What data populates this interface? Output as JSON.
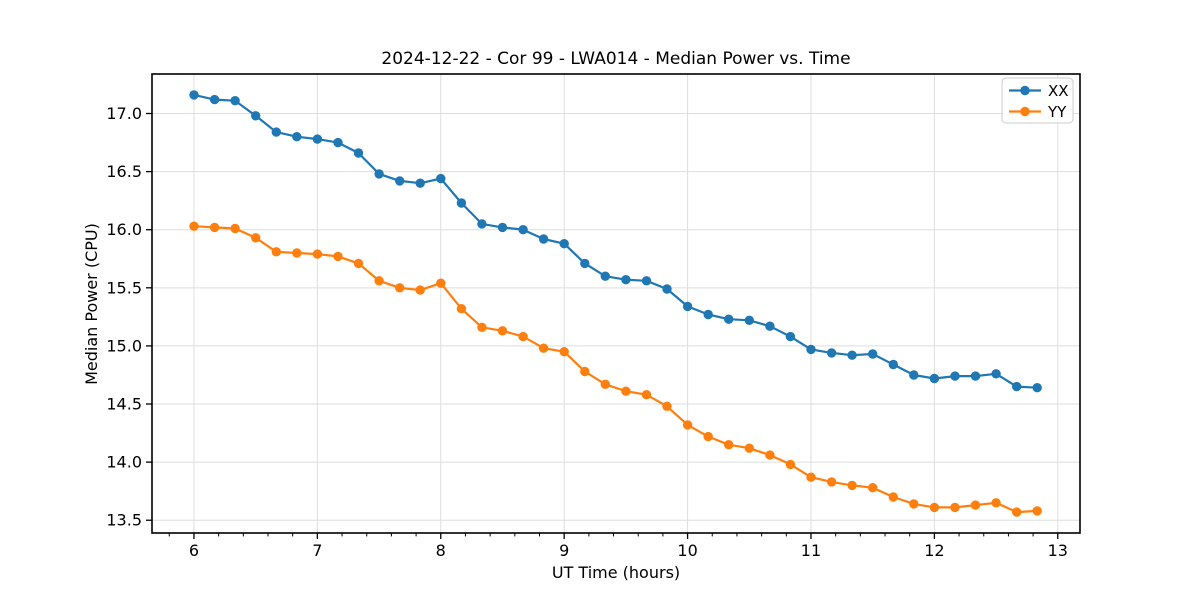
{
  "chart_data": {
    "type": "line",
    "title": "2024-12-22 - Cor 99 - LWA014 - Median Power vs. Time",
    "xlabel": "UT Time (hours)",
    "ylabel": "Median Power (CPU)",
    "xlim": [
      5.66,
      13.18
    ],
    "ylim": [
      13.39,
      17.34
    ],
    "x_major_ticks": [
      6,
      7,
      8,
      9,
      10,
      11,
      12,
      13
    ],
    "x_tick_labels": [
      "6",
      "7",
      "8",
      "9",
      "10",
      "11",
      "12",
      "13"
    ],
    "y_major_ticks": [
      13.5,
      14.0,
      14.5,
      15.0,
      15.5,
      16.0,
      16.5,
      17.0
    ],
    "y_tick_labels": [
      "13.5",
      "14.0",
      "14.5",
      "15.0",
      "15.5",
      "16.0",
      "16.5",
      "17.0"
    ],
    "x_minor_step": 0.2,
    "grid": true,
    "legend": {
      "position": "upper right",
      "entries": [
        "XX",
        "YY"
      ]
    },
    "x": [
      6.0,
      6.167,
      6.333,
      6.5,
      6.667,
      6.833,
      7.0,
      7.167,
      7.333,
      7.5,
      7.667,
      7.833,
      8.0,
      8.167,
      8.333,
      8.5,
      8.667,
      8.833,
      9.0,
      9.167,
      9.333,
      9.5,
      9.667,
      9.833,
      10.0,
      10.167,
      10.333,
      10.5,
      10.667,
      10.833,
      11.0,
      11.167,
      11.333,
      11.5,
      11.667,
      11.833,
      12.0,
      12.167,
      12.333,
      12.5,
      12.667,
      12.833
    ],
    "series": [
      {
        "name": "XX",
        "color": "#1f77b4",
        "marker": "circle",
        "values": [
          17.16,
          17.12,
          17.11,
          16.98,
          16.84,
          16.8,
          16.78,
          16.75,
          16.66,
          16.48,
          16.42,
          16.4,
          16.44,
          16.23,
          16.05,
          16.02,
          16.0,
          15.92,
          15.88,
          15.71,
          15.6,
          15.57,
          15.56,
          15.49,
          15.34,
          15.27,
          15.23,
          15.22,
          15.17,
          15.08,
          14.97,
          14.94,
          14.92,
          14.93,
          14.84,
          14.75,
          14.72,
          14.74,
          14.74,
          14.76,
          14.65,
          14.64
        ]
      },
      {
        "name": "YY",
        "color": "#ff7f0e",
        "marker": "circle",
        "values": [
          16.03,
          16.02,
          16.01,
          15.93,
          15.81,
          15.8,
          15.79,
          15.77,
          15.71,
          15.56,
          15.5,
          15.48,
          15.54,
          15.32,
          15.16,
          15.13,
          15.08,
          14.98,
          14.95,
          14.78,
          14.67,
          14.61,
          14.58,
          14.48,
          14.32,
          14.22,
          14.15,
          14.12,
          14.06,
          13.98,
          13.87,
          13.83,
          13.8,
          13.78,
          13.7,
          13.64,
          13.61,
          13.61,
          13.63,
          13.65,
          13.57,
          13.58
        ]
      }
    ]
  },
  "colors": {
    "background": "#ffffff",
    "grid": "#dedede",
    "axis": "#000000",
    "text": "#000000",
    "legend_border": "#cccccc",
    "legend_fill": "#ffffff"
  }
}
